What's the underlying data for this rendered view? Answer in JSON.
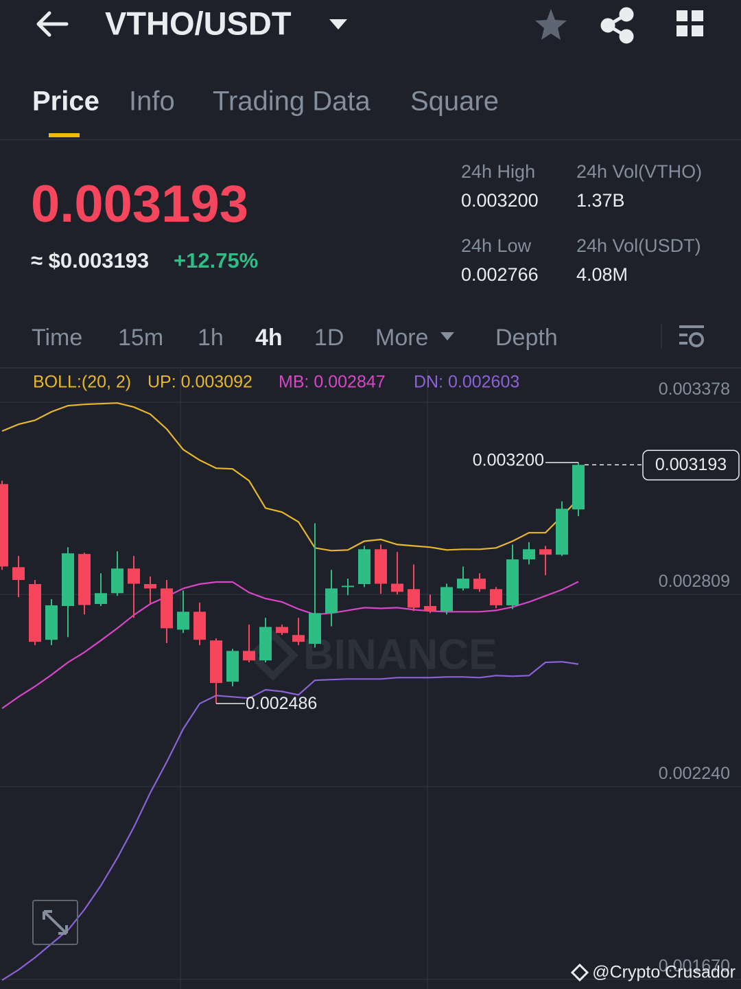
{
  "header": {
    "title": "VTHO/USDT"
  },
  "tabs": [
    "Price",
    "Info",
    "Trading Data",
    "Square"
  ],
  "price": {
    "last": "0.003193",
    "usd": "≈ $0.003193",
    "change": "+12.75%"
  },
  "stats": [
    {
      "label": "24h High",
      "value": "0.003200"
    },
    {
      "label": "24h Vol(VTHO)",
      "value": "1.37B"
    },
    {
      "label": "24h Low",
      "value": "0.002766"
    },
    {
      "label": "24h Vol(USDT)",
      "value": "4.08M"
    }
  ],
  "intervals": [
    "Time",
    "15m",
    "1h",
    "4h",
    "1D",
    "More",
    "Depth"
  ],
  "watermark": "BINANCE",
  "credit": "@Crypto Crusador",
  "chart_data": {
    "type": "candlestick",
    "indicator": "BOLL:(20, 2)",
    "up_color": "#2ebd85",
    "down_color": "#f6465d",
    "open": [
      0.003136,
      0.00289,
      0.00284,
      0.002675,
      0.002775,
      0.002929,
      0.002781,
      0.002813,
      0.002886,
      0.00284,
      0.002827,
      0.002705,
      0.002758,
      0.002673,
      0.002551,
      0.002642,
      0.002614,
      0.002713,
      0.002689,
      0.002663,
      0.002754,
      0.002831,
      0.00284,
      0.002943,
      0.002841,
      0.002825,
      0.002775,
      0.00276,
      0.002827,
      0.002856,
      0.002825,
      0.002777,
      0.002913,
      0.002943,
      0.002927,
      0.003061
    ],
    "high": [
      0.003146,
      0.002923,
      0.002852,
      0.002795,
      0.002949,
      0.002933,
      0.002872,
      0.002937,
      0.002923,
      0.002862,
      0.002852,
      0.002821,
      0.002785,
      0.002679,
      0.002648,
      0.00272,
      0.00274,
      0.00272,
      0.00274,
      0.00302,
      0.002882,
      0.002856,
      0.002953,
      0.002957,
      0.002935,
      0.002898,
      0.002809,
      0.002841,
      0.002892,
      0.002872,
      0.002831,
      0.002957,
      0.002964,
      0.002953,
      0.003085,
      0.0032
    ],
    "low": [
      0.002882,
      0.002801,
      0.002659,
      0.002659,
      0.002683,
      0.00275,
      0.002775,
      0.002805,
      0.00274,
      0.002781,
      0.002665,
      0.002695,
      0.002659,
      0.002486,
      0.002537,
      0.002608,
      0.002608,
      0.002689,
      0.002659,
      0.002652,
      0.002715,
      0.002807,
      0.002831,
      0.002811,
      0.002809,
      0.00276,
      0.002754,
      0.00275,
      0.002821,
      0.002817,
      0.002768,
      0.002766,
      0.002898,
      0.002866,
      0.002923,
      0.003041
    ],
    "close": [
      0.002892,
      0.002852,
      0.002669,
      0.002777,
      0.002931,
      0.002778,
      0.002813,
      0.002886,
      0.002841,
      0.002827,
      0.002709,
      0.002758,
      0.002675,
      0.002547,
      0.002642,
      0.002614,
      0.002713,
      0.002695,
      0.002669,
      0.002754,
      0.002827,
      0.002835,
      0.002943,
      0.002841,
      0.002817,
      0.00277,
      0.00276,
      0.002831,
      0.002856,
      0.002825,
      0.002777,
      0.002913,
      0.002943,
      0.002927,
      0.003063,
      0.003193
    ],
    "series": [
      {
        "name": "UP: 0.003092",
        "color": "#e8b82a",
        "values": [
          0.003293,
          0.003313,
          0.003325,
          0.00335,
          0.003368,
          0.003372,
          0.003374,
          0.003376,
          0.003364,
          0.003343,
          0.003299,
          0.003238,
          0.003207,
          0.003183,
          0.003181,
          0.003146,
          0.003065,
          0.003053,
          0.003024,
          0.002947,
          0.002939,
          0.002941,
          0.002967,
          0.002972,
          0.002957,
          0.002953,
          0.002949,
          0.002941,
          0.002943,
          0.002943,
          0.002947,
          0.002967,
          0.002992,
          0.002992,
          0.003041,
          0.003092
        ]
      },
      {
        "name": "MB: 0.002847",
        "color": "#d946c8",
        "values": [
          0.002472,
          0.002506,
          0.002537,
          0.002571,
          0.002608,
          0.002638,
          0.002673,
          0.002709,
          0.002748,
          0.002781,
          0.002803,
          0.002827,
          0.00284,
          0.002846,
          0.002846,
          0.002815,
          0.002797,
          0.002787,
          0.002766,
          0.00275,
          0.002754,
          0.002762,
          0.00277,
          0.002768,
          0.00277,
          0.002764,
          0.00276,
          0.002758,
          0.002758,
          0.002758,
          0.002762,
          0.002772,
          0.002787,
          0.002805,
          0.002823,
          0.002847
        ]
      },
      {
        "name": "DN: 0.002603",
        "color": "#8c62d8",
        "values": [
          0.001667,
          0.001698,
          0.001734,
          0.001775,
          0.001815,
          0.001876,
          0.001947,
          0.002029,
          0.00212,
          0.002222,
          0.002313,
          0.002411,
          0.002486,
          0.00251,
          0.002506,
          0.002502,
          0.002527,
          0.002522,
          0.002512,
          0.002555,
          0.002557,
          0.002559,
          0.002559,
          0.002559,
          0.002563,
          0.002563,
          0.002563,
          0.002565,
          0.002565,
          0.002563,
          0.002569,
          0.002567,
          0.002569,
          0.002608,
          0.00261,
          0.002603
        ]
      }
    ],
    "ylim": [
      0.001641,
      0.003476
    ],
    "yticks": [
      0.003378,
      0.002809,
      {
        "value": 0.00224,
        "label": "0.002240"
      },
      {
        "value": 0.00167,
        "label": "0.001670"
      }
    ],
    "grid": true,
    "annotations": {
      "high": {
        "value": 0.0032,
        "label": "0.003200"
      },
      "low": 0.002486,
      "last": 0.003193
    }
  }
}
